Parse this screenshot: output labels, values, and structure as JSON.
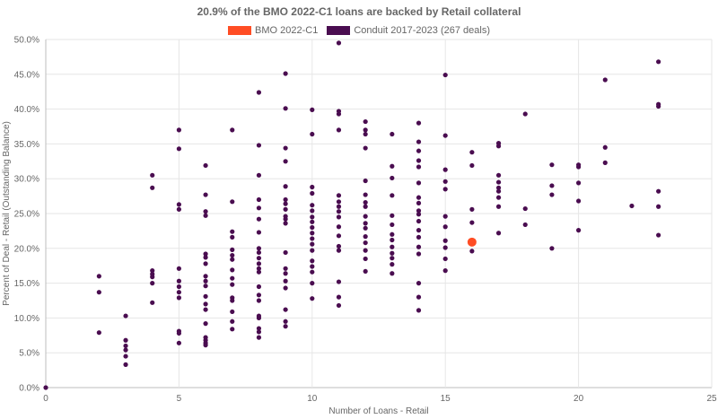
{
  "chart_data": {
    "type": "scatter",
    "title": "20.9% of the BMO 2022-C1 loans are backed by Retail collateral",
    "xlabel": "Number of Loans - Retail",
    "ylabel": "Percent of Deal - Retail (Outstanding Balance)",
    "xlim": [
      0,
      25
    ],
    "ylim": [
      0,
      50
    ],
    "x_ticks": [
      "0",
      "5",
      "10",
      "15",
      "20",
      "25"
    ],
    "y_ticks": [
      "0.0%",
      "5.0%",
      "10.0%",
      "15.0%",
      "20.0%",
      "25.0%",
      "30.0%",
      "35.0%",
      "40.0%",
      "45.0%",
      "50.0%"
    ],
    "grid": true,
    "legend": "top",
    "series": [
      {
        "name": "BMO 2022-C1",
        "color": "#ff4d24",
        "points": [
          [
            16,
            20.9
          ]
        ]
      },
      {
        "name": "Conduit 2017-2023 (267 deals)",
        "color": "#4a0d50",
        "points": [
          [
            0,
            0.0
          ],
          [
            2,
            16.0
          ],
          [
            2,
            13.7
          ],
          [
            2,
            7.9
          ],
          [
            3,
            10.3
          ],
          [
            3,
            6.8
          ],
          [
            3,
            6.0
          ],
          [
            3,
            5.4
          ],
          [
            3,
            4.5
          ],
          [
            3,
            3.3
          ],
          [
            4,
            30.5
          ],
          [
            4,
            28.7
          ],
          [
            4,
            16.8
          ],
          [
            4,
            16.3
          ],
          [
            4,
            15.9
          ],
          [
            4,
            15.0
          ],
          [
            4,
            12.2
          ],
          [
            5,
            37.0
          ],
          [
            5,
            34.3
          ],
          [
            5,
            26.3
          ],
          [
            5,
            25.6
          ],
          [
            5,
            17.1
          ],
          [
            5,
            15.3
          ],
          [
            5,
            14.5
          ],
          [
            5,
            13.7
          ],
          [
            5,
            12.9
          ],
          [
            5,
            8.1
          ],
          [
            5,
            7.8
          ],
          [
            5,
            6.4
          ],
          [
            6,
            31.9
          ],
          [
            6,
            27.7
          ],
          [
            6,
            25.3
          ],
          [
            6,
            24.7
          ],
          [
            6,
            19.2
          ],
          [
            6,
            18.7
          ],
          [
            6,
            17.8
          ],
          [
            6,
            16.0
          ],
          [
            6,
            15.3
          ],
          [
            6,
            14.6
          ],
          [
            6,
            13.1
          ],
          [
            6,
            12.0
          ],
          [
            6,
            11.2
          ],
          [
            6,
            9.2
          ],
          [
            6,
            7.2
          ],
          [
            6,
            6.8
          ],
          [
            6,
            6.4
          ],
          [
            6,
            6.1
          ],
          [
            7,
            37.0
          ],
          [
            7,
            26.7
          ],
          [
            7,
            22.4
          ],
          [
            7,
            21.6
          ],
          [
            7,
            19.8
          ],
          [
            7,
            19.0
          ],
          [
            7,
            18.4
          ],
          [
            7,
            16.9
          ],
          [
            7,
            15.7
          ],
          [
            7,
            14.8
          ],
          [
            7,
            12.9
          ],
          [
            7,
            12.5
          ],
          [
            7,
            10.9
          ],
          [
            7,
            9.5
          ],
          [
            7,
            8.4
          ],
          [
            8,
            42.4
          ],
          [
            8,
            34.8
          ],
          [
            8,
            30.5
          ],
          [
            8,
            27.0
          ],
          [
            8,
            25.8
          ],
          [
            8,
            24.2
          ],
          [
            8,
            22.3
          ],
          [
            8,
            20.0
          ],
          [
            8,
            19.4
          ],
          [
            8,
            18.6
          ],
          [
            8,
            17.8
          ],
          [
            8,
            17.1
          ],
          [
            8,
            16.6
          ],
          [
            8,
            14.5
          ],
          [
            8,
            13.3
          ],
          [
            8,
            12.5
          ],
          [
            8,
            10.3
          ],
          [
            8,
            10.0
          ],
          [
            8,
            8.5
          ],
          [
            8,
            8.0
          ],
          [
            8,
            7.2
          ],
          [
            9,
            45.1
          ],
          [
            9,
            40.1
          ],
          [
            9,
            34.4
          ],
          [
            9,
            32.5
          ],
          [
            9,
            28.9
          ],
          [
            9,
            27.0
          ],
          [
            9,
            26.4
          ],
          [
            9,
            25.6
          ],
          [
            9,
            24.6
          ],
          [
            9,
            24.2
          ],
          [
            9,
            23.6
          ],
          [
            9,
            19.4
          ],
          [
            9,
            17.1
          ],
          [
            9,
            16.4
          ],
          [
            9,
            15.3
          ],
          [
            9,
            14.3
          ],
          [
            9,
            11.2
          ],
          [
            9,
            9.5
          ],
          [
            9,
            8.8
          ],
          [
            10,
            39.9
          ],
          [
            10,
            36.4
          ],
          [
            10,
            28.8
          ],
          [
            10,
            27.9
          ],
          [
            10,
            26.2
          ],
          [
            10,
            25.4
          ],
          [
            10,
            24.5
          ],
          [
            10,
            23.8
          ],
          [
            10,
            23.0
          ],
          [
            10,
            22.2
          ],
          [
            10,
            21.4
          ],
          [
            10,
            20.6
          ],
          [
            10,
            19.7
          ],
          [
            10,
            18.2
          ],
          [
            10,
            17.4
          ],
          [
            10,
            16.6
          ],
          [
            10,
            15.0
          ],
          [
            10,
            12.8
          ],
          [
            11,
            49.5
          ],
          [
            11,
            39.7
          ],
          [
            11,
            39.3
          ],
          [
            11,
            37.0
          ],
          [
            11,
            27.6
          ],
          [
            11,
            26.7
          ],
          [
            11,
            26.0
          ],
          [
            11,
            25.3
          ],
          [
            11,
            24.5
          ],
          [
            11,
            23.1
          ],
          [
            11,
            21.8
          ],
          [
            11,
            20.3
          ],
          [
            11,
            19.7
          ],
          [
            11,
            15.2
          ],
          [
            11,
            13.0
          ],
          [
            11,
            11.8
          ],
          [
            12,
            38.2
          ],
          [
            12,
            37.0
          ],
          [
            12,
            36.4
          ],
          [
            12,
            34.4
          ],
          [
            12,
            29.7
          ],
          [
            12,
            27.7
          ],
          [
            12,
            26.6
          ],
          [
            12,
            26.0
          ],
          [
            12,
            24.6
          ],
          [
            12,
            23.6
          ],
          [
            12,
            22.9
          ],
          [
            12,
            21.7
          ],
          [
            12,
            20.8
          ],
          [
            12,
            19.7
          ],
          [
            12,
            18.5
          ],
          [
            12,
            16.7
          ],
          [
            13,
            36.4
          ],
          [
            13,
            31.8
          ],
          [
            13,
            30.1
          ],
          [
            13,
            27.6
          ],
          [
            13,
            24.7
          ],
          [
            13,
            23.4
          ],
          [
            13,
            22.0
          ],
          [
            13,
            21.2
          ],
          [
            13,
            20.2
          ],
          [
            13,
            19.3
          ],
          [
            13,
            18.6
          ],
          [
            13,
            17.7
          ],
          [
            13,
            16.4
          ],
          [
            14,
            38.0
          ],
          [
            14,
            35.3
          ],
          [
            14,
            34.0
          ],
          [
            14,
            32.6
          ],
          [
            14,
            31.7
          ],
          [
            14,
            29.4
          ],
          [
            14,
            27.3
          ],
          [
            14,
            26.5
          ],
          [
            14,
            25.4
          ],
          [
            14,
            24.9
          ],
          [
            14,
            23.9
          ],
          [
            14,
            22.6
          ],
          [
            14,
            21.6
          ],
          [
            14,
            20.2
          ],
          [
            14,
            19.2
          ],
          [
            14,
            15.0
          ],
          [
            14,
            13.0
          ],
          [
            14,
            11.1
          ],
          [
            15,
            44.9
          ],
          [
            15,
            36.2
          ],
          [
            15,
            31.3
          ],
          [
            15,
            29.6
          ],
          [
            15,
            28.5
          ],
          [
            15,
            24.6
          ],
          [
            15,
            23.1
          ],
          [
            15,
            21.1
          ],
          [
            15,
            20.1
          ],
          [
            15,
            18.5
          ],
          [
            15,
            16.8
          ],
          [
            16,
            33.8
          ],
          [
            16,
            31.9
          ],
          [
            16,
            25.6
          ],
          [
            16,
            23.7
          ],
          [
            16,
            19.6
          ],
          [
            17,
            35.1
          ],
          [
            17,
            34.7
          ],
          [
            17,
            30.5
          ],
          [
            17,
            29.5
          ],
          [
            17,
            28.7
          ],
          [
            17,
            28.2
          ],
          [
            17,
            27.3
          ],
          [
            17,
            26.0
          ],
          [
            17,
            22.2
          ],
          [
            18,
            39.3
          ],
          [
            18,
            25.7
          ],
          [
            18,
            23.4
          ],
          [
            19,
            32.0
          ],
          [
            19,
            29.0
          ],
          [
            19,
            27.7
          ],
          [
            19,
            20.0
          ],
          [
            20,
            32.0
          ],
          [
            20,
            31.7
          ],
          [
            20,
            29.4
          ],
          [
            20,
            26.8
          ],
          [
            20,
            22.6
          ],
          [
            21,
            44.2
          ],
          [
            21,
            34.5
          ],
          [
            21,
            32.3
          ],
          [
            22,
            26.1
          ],
          [
            23,
            46.8
          ],
          [
            23,
            40.7
          ],
          [
            23,
            40.4
          ],
          [
            23,
            28.2
          ],
          [
            23,
            26.0
          ],
          [
            23,
            21.9
          ]
        ]
      }
    ]
  }
}
